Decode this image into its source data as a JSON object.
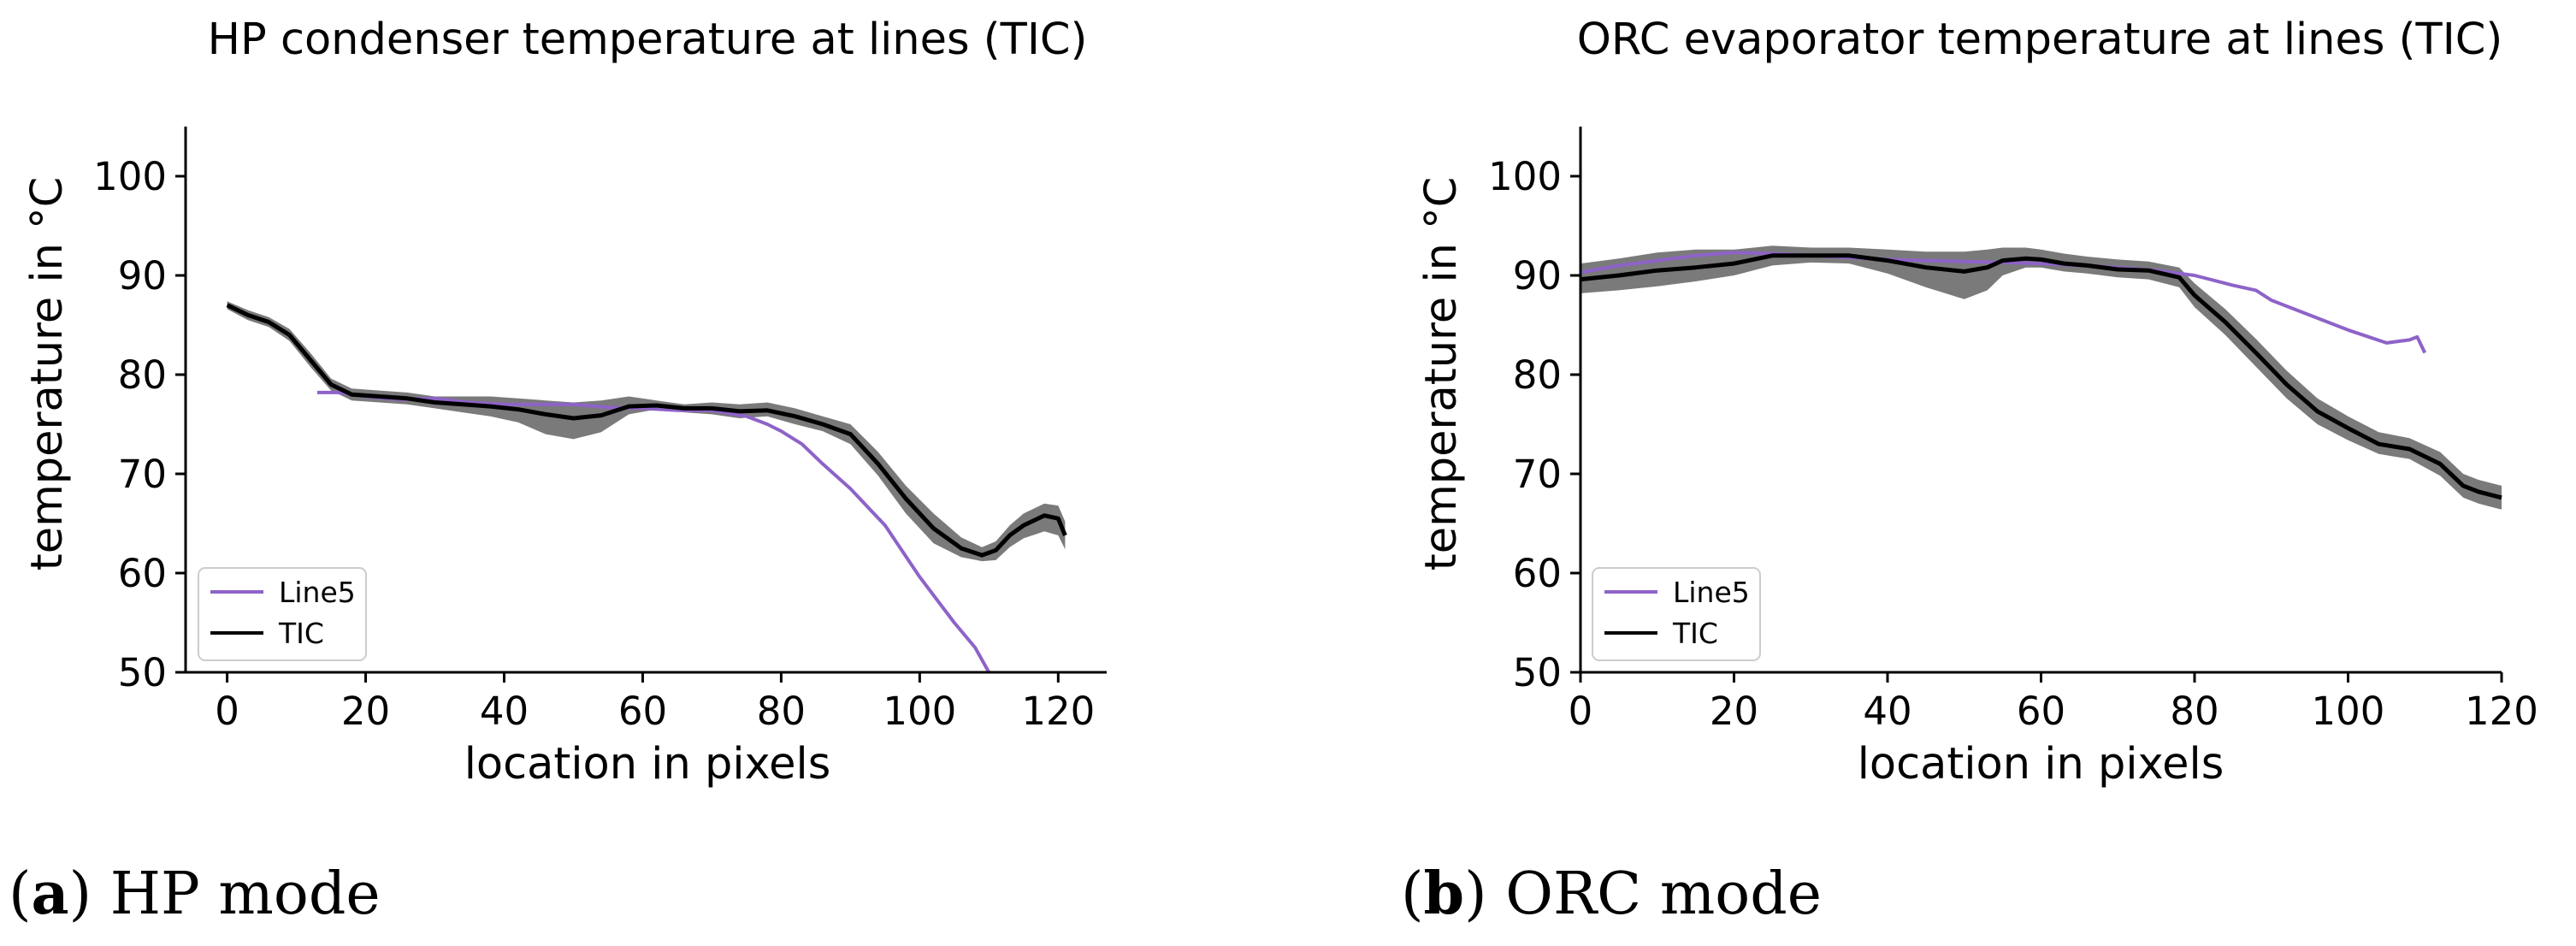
{
  "colors": {
    "line5": "#8e63c8",
    "tic": "#000000",
    "band": "#7a7a7a",
    "axis": "#000000"
  },
  "captions": {
    "a": {
      "letter": "a",
      "text": " HP mode"
    },
    "b": {
      "letter": "b",
      "text": " ORC mode"
    }
  },
  "chart_data": [
    {
      "type": "line",
      "title": "HP condenser temperature at lines (TIC)",
      "xlabel": "location in pixels",
      "ylabel": "temperature in °C",
      "xlim": [
        -6,
        127
      ],
      "ylim": [
        50,
        105
      ],
      "xticks": [
        0,
        20,
        40,
        60,
        80,
        100,
        120
      ],
      "yticks": [
        50,
        60,
        70,
        80,
        90,
        100
      ],
      "legend": {
        "position": "lower-left",
        "entries": [
          "Line5",
          "TIC"
        ]
      },
      "series": [
        {
          "name": "Line5",
          "color": "#8e63c8",
          "x": [
            13,
            16,
            20,
            25,
            30,
            35,
            40,
            45,
            50,
            55,
            60,
            65,
            70,
            75,
            78,
            80,
            83,
            86,
            90,
            95,
            100,
            105,
            108,
            110
          ],
          "y": [
            78.2,
            78.2,
            77.8,
            77.5,
            77.6,
            77.2,
            77.0,
            77.0,
            77.0,
            76.7,
            76.6,
            76.4,
            76.4,
            75.8,
            75.0,
            74.3,
            73.0,
            71.0,
            68.5,
            64.8,
            59.6,
            55.0,
            52.5,
            50.0
          ]
        },
        {
          "name": "TIC",
          "color": "#000000",
          "x": [
            0,
            3,
            6,
            9,
            12,
            15,
            18,
            22,
            26,
            30,
            34,
            38,
            42,
            46,
            50,
            54,
            58,
            62,
            66,
            70,
            74,
            78,
            82,
            86,
            90,
            94,
            98,
            102,
            106,
            109,
            111,
            113,
            115,
            118,
            120,
            121
          ],
          "y": [
            87.0,
            86.0,
            85.3,
            84.0,
            81.5,
            79.0,
            78.0,
            77.8,
            77.6,
            77.2,
            77.0,
            76.8,
            76.5,
            76.0,
            75.6,
            75.9,
            76.8,
            76.9,
            76.6,
            76.6,
            76.3,
            76.4,
            75.8,
            75.0,
            74.0,
            71.0,
            67.5,
            64.5,
            62.5,
            61.8,
            62.3,
            63.8,
            64.8,
            65.8,
            65.5,
            63.8
          ],
          "band_lower": [
            86.6,
            85.5,
            84.8,
            83.4,
            80.8,
            78.4,
            77.4,
            77.2,
            77.0,
            76.6,
            76.2,
            75.8,
            75.2,
            74.0,
            73.5,
            74.2,
            76.0,
            76.5,
            76.2,
            76.0,
            75.6,
            75.8,
            75.0,
            74.3,
            73.0,
            69.8,
            66.0,
            63.0,
            61.6,
            61.2,
            61.3,
            62.6,
            63.5,
            64.2,
            63.8,
            62.4
          ],
          "band_upper": [
            87.4,
            86.5,
            85.8,
            84.6,
            82.2,
            79.6,
            78.6,
            78.4,
            78.2,
            77.8,
            77.8,
            77.8,
            77.6,
            77.4,
            77.2,
            77.4,
            77.8,
            77.4,
            77.0,
            77.2,
            77.0,
            77.2,
            76.6,
            75.8,
            75.0,
            72.2,
            68.8,
            66.0,
            63.6,
            62.6,
            63.2,
            64.8,
            66.0,
            67.0,
            66.8,
            65.2
          ]
        }
      ]
    },
    {
      "type": "line",
      "title": "ORC evaporator temperature at lines (TIC)",
      "xlabel": "location in pixels",
      "ylabel": "temperature in °C",
      "xlim": [
        0,
        120
      ],
      "ylim": [
        50,
        105
      ],
      "xticks": [
        0,
        20,
        40,
        60,
        80,
        100,
        120
      ],
      "yticks": [
        50,
        60,
        70,
        80,
        90,
        100
      ],
      "legend": {
        "position": "lower-left",
        "entries": [
          "Line5",
          "TIC"
        ]
      },
      "series": [
        {
          "name": "Line5",
          "color": "#8e63c8",
          "x": [
            0,
            5,
            10,
            15,
            20,
            25,
            30,
            35,
            40,
            45,
            50,
            55,
            60,
            65,
            70,
            75,
            80,
            85,
            88,
            90,
            95,
            100,
            105,
            108,
            109,
            110
          ],
          "y": [
            90.3,
            91.0,
            91.5,
            92.0,
            92.3,
            92.2,
            92.0,
            91.8,
            91.6,
            91.5,
            91.4,
            91.3,
            91.2,
            91.0,
            90.8,
            90.5,
            90.0,
            89.0,
            88.5,
            87.5,
            86.0,
            84.5,
            83.2,
            83.5,
            83.8,
            82.2
          ]
        },
        {
          "name": "TIC",
          "color": "#000000",
          "x": [
            0,
            5,
            10,
            15,
            20,
            25,
            30,
            35,
            40,
            45,
            50,
            53,
            55,
            58,
            60,
            63,
            66,
            70,
            74,
            78,
            80,
            84,
            88,
            92,
            96,
            100,
            104,
            108,
            112,
            115,
            117,
            120
          ],
          "y": [
            89.6,
            90.0,
            90.5,
            90.8,
            91.2,
            92.0,
            92.0,
            92.0,
            91.5,
            90.8,
            90.4,
            90.8,
            91.5,
            91.7,
            91.6,
            91.2,
            91.0,
            90.6,
            90.5,
            89.8,
            88.0,
            85.3,
            82.2,
            79.0,
            76.3,
            74.6,
            73.0,
            72.5,
            71.0,
            68.8,
            68.2,
            67.6
          ],
          "band_lower": [
            88.2,
            88.5,
            88.9,
            89.4,
            90.0,
            91.0,
            91.3,
            91.2,
            90.2,
            88.8,
            87.6,
            88.5,
            90.0,
            90.8,
            90.8,
            90.4,
            90.2,
            89.8,
            89.6,
            88.8,
            86.8,
            84.0,
            80.8,
            77.6,
            75.0,
            73.4,
            72.0,
            71.5,
            69.8,
            67.6,
            67.0,
            66.4
          ],
          "band_upper": [
            91.2,
            91.7,
            92.3,
            92.6,
            92.6,
            93.0,
            92.8,
            92.8,
            92.6,
            92.4,
            92.4,
            92.6,
            92.8,
            92.8,
            92.6,
            92.2,
            91.9,
            91.6,
            91.4,
            90.8,
            89.2,
            86.6,
            83.6,
            80.4,
            77.6,
            75.8,
            74.2,
            73.6,
            72.2,
            70.0,
            69.4,
            68.8
          ]
        }
      ]
    }
  ]
}
